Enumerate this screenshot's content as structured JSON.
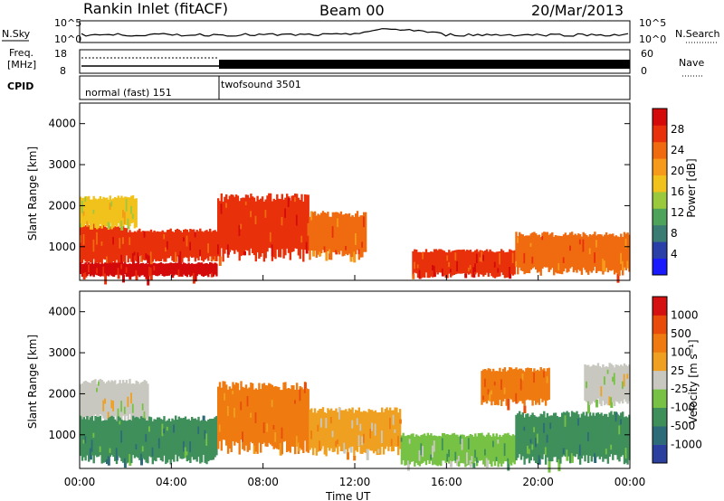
{
  "header": {
    "site": "Rankin Inlet (fitACF)",
    "beam": "Beam 00",
    "date": "20/Mar/2013"
  },
  "strip": {
    "nsky_label": "N.Sky",
    "nsearch_label": "N.Search",
    "freq_label_1": "Freq.",
    "freq_label_2": "[MHz]",
    "nave_label": "Nave",
    "cpid_label": "CPID",
    "noise_ticks_left": [
      "10^5",
      "10^0"
    ],
    "noise_ticks_right": [
      "10^5",
      "10^0"
    ],
    "freq_ticks": [
      "18",
      "8"
    ],
    "nave_ticks": [
      "60",
      "0"
    ],
    "cpid_segments": [
      "normal (fast) 151",
      "twofsound 3501"
    ]
  },
  "colors": {
    "power_scale": [
      "#1a1aff",
      "#2b3fa8",
      "#3a7b73",
      "#4ea35a",
      "#9ac93d",
      "#f2c21c",
      "#f59a1a",
      "#f06a10",
      "#e8300a",
      "#d40a0a"
    ],
    "velocity_scale": [
      "#2a3f9e",
      "#2e6b78",
      "#3f8f5b",
      "#77c244",
      "#c8c8c0",
      "#f0a020",
      "#ee7a10",
      "#e94b0a",
      "#d41010"
    ]
  },
  "chart_data": [
    {
      "type": "heatmap",
      "title": "",
      "xlabel": "",
      "ylabel": "Slant Range [km]",
      "xticks": [
        "00:00",
        "04:00",
        "08:00",
        "12:00",
        "16:00",
        "20:00",
        "00:00"
      ],
      "yticks": [
        "1000",
        "2000",
        "3000",
        "4000"
      ],
      "ylim": [
        180,
        4500
      ],
      "colorbar": {
        "label": "Power [dB]",
        "ticks": [
          "28",
          "24",
          "20",
          "16",
          "12",
          "8",
          "4"
        ]
      },
      "bands": [
        {
          "t0": 0.0,
          "t1": 2.0,
          "r0": 600,
          "r1": 1500,
          "level": 8
        },
        {
          "t0": 0.0,
          "t1": 2.5,
          "r0": 1500,
          "r1": 2200,
          "level": 5
        },
        {
          "t0": 0.0,
          "t1": 6.0,
          "r0": 300,
          "r1": 600,
          "level": 9
        },
        {
          "t0": 2.0,
          "t1": 6.0,
          "r0": 700,
          "r1": 1400,
          "level": 8
        },
        {
          "t0": 6.0,
          "t1": 10.0,
          "r0": 800,
          "r1": 2200,
          "level": 8
        },
        {
          "t0": 10.0,
          "t1": 12.5,
          "r0": 800,
          "r1": 1800,
          "level": 7
        },
        {
          "t0": 14.5,
          "t1": 19.0,
          "r0": 300,
          "r1": 900,
          "level": 8
        },
        {
          "t0": 19.0,
          "t1": 24.0,
          "r0": 400,
          "r1": 1300,
          "level": 7
        }
      ]
    },
    {
      "type": "heatmap",
      "title": "",
      "xlabel": "Time UT",
      "ylabel": "Slant Range [km]",
      "xticks": [
        "00:00",
        "04:00",
        "08:00",
        "12:00",
        "16:00",
        "20:00",
        "00:00"
      ],
      "yticks": [
        "1000",
        "2000",
        "3000",
        "4000"
      ],
      "ylim": [
        180,
        4500
      ],
      "colorbar": {
        "label": "Velocity [m s⁻¹]",
        "ticks": [
          "1000",
          "500",
          "100",
          "25",
          "-25",
          "-100",
          "-500",
          "-1000"
        ]
      },
      "bands": [
        {
          "t0": 0.0,
          "t1": 3.0,
          "r0": 1400,
          "r1": 2300,
          "level": 4
        },
        {
          "t0": 0.0,
          "t1": 6.0,
          "r0": 400,
          "r1": 1400,
          "level": 2
        },
        {
          "t0": 6.0,
          "t1": 10.0,
          "r0": 700,
          "r1": 2200,
          "level": 6
        },
        {
          "t0": 10.0,
          "t1": 14.0,
          "r0": 600,
          "r1": 1600,
          "level": 5
        },
        {
          "t0": 14.0,
          "t1": 19.0,
          "r0": 300,
          "r1": 1000,
          "level": 3
        },
        {
          "t0": 17.5,
          "t1": 20.5,
          "r0": 1800,
          "r1": 2600,
          "level": 6
        },
        {
          "t0": 19.0,
          "t1": 24.0,
          "r0": 400,
          "r1": 1500,
          "level": 2
        },
        {
          "t0": 22.0,
          "t1": 24.0,
          "r0": 1800,
          "r1": 2700,
          "level": 4
        }
      ]
    }
  ]
}
